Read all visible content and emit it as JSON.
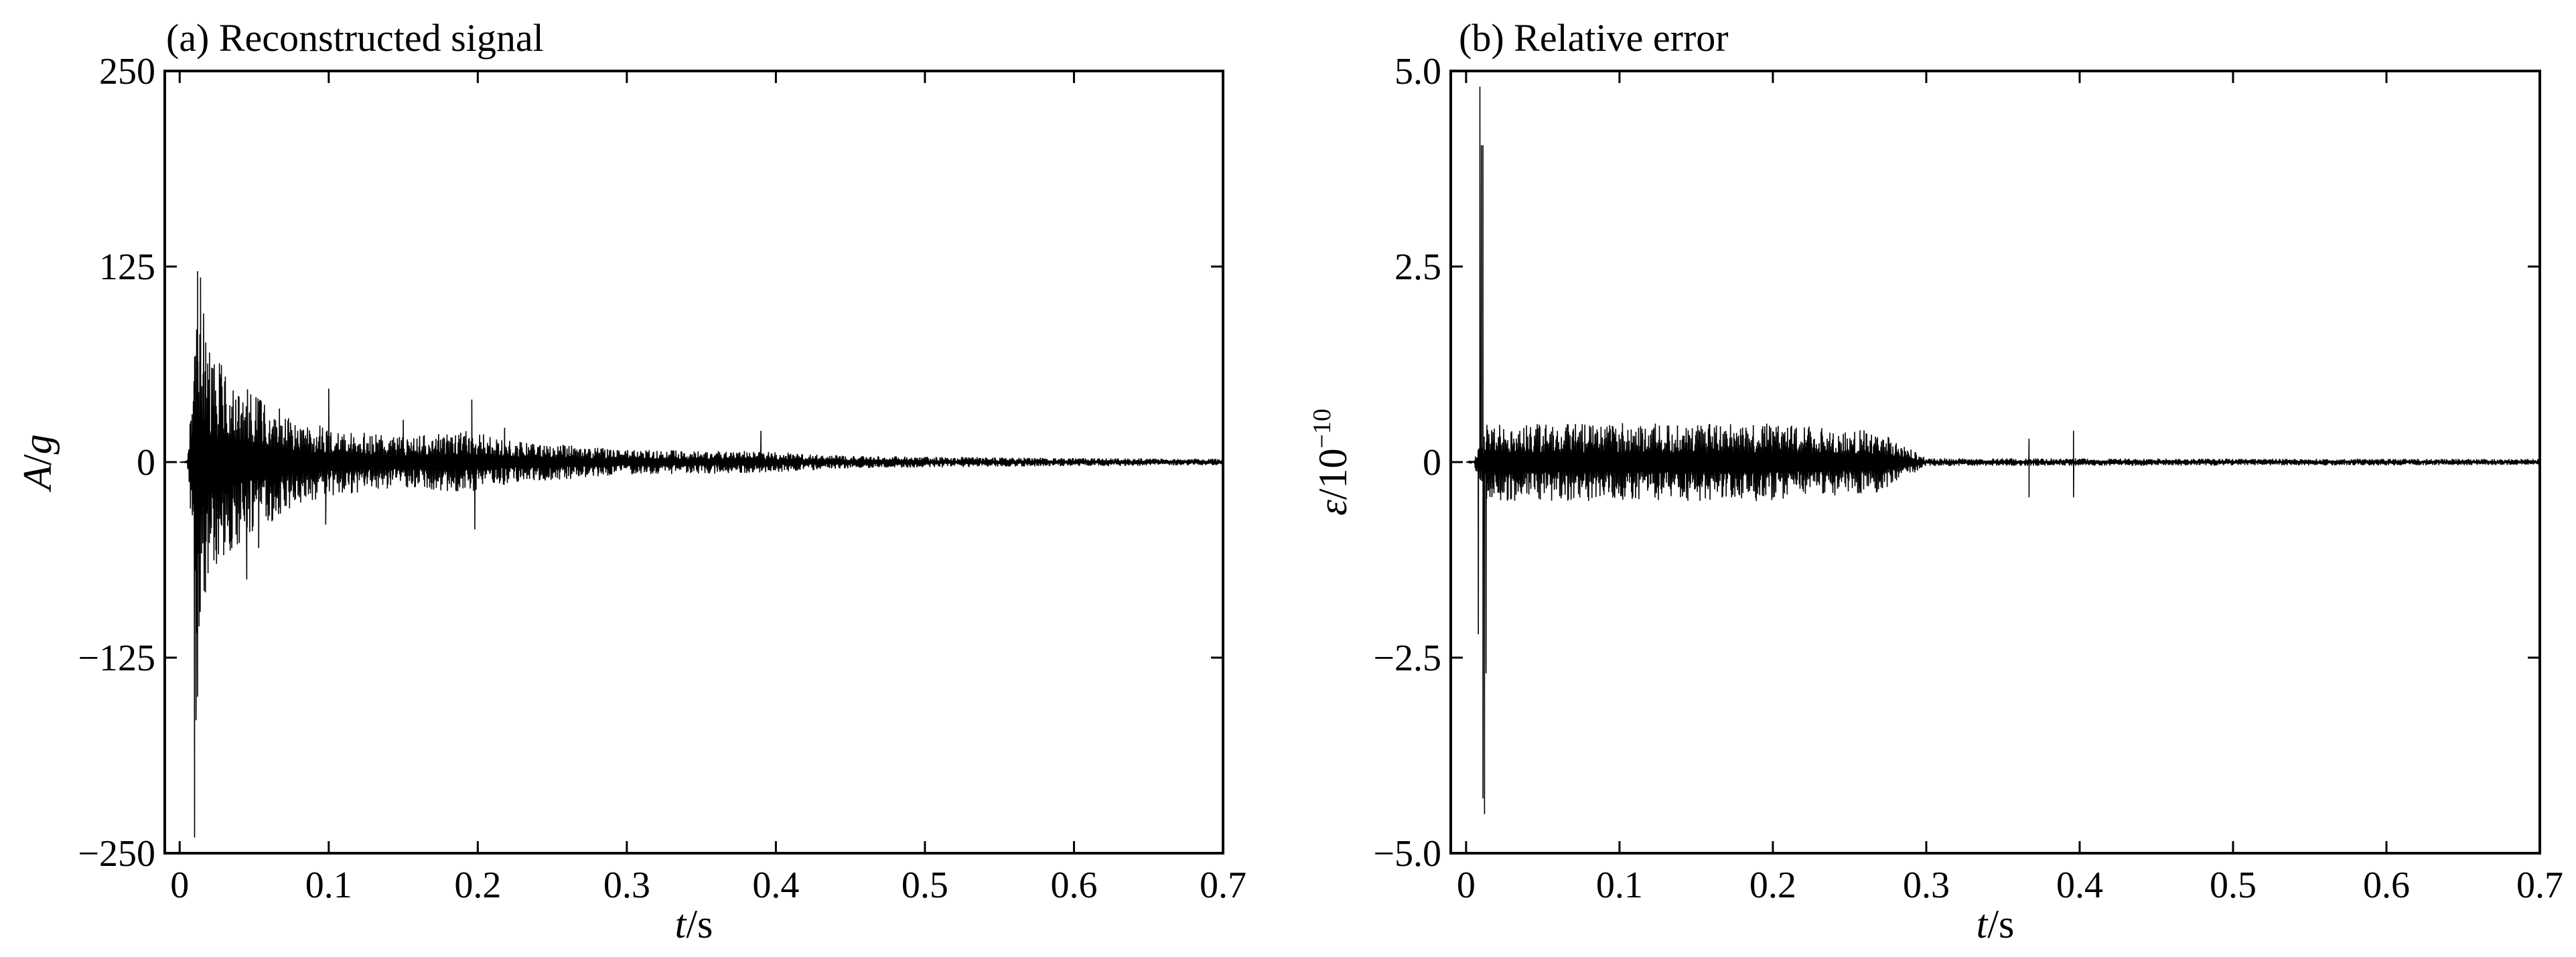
{
  "chart_data": [
    {
      "type": "line",
      "title": "(a) Reconstructed signal",
      "xlabel_var": "t",
      "xlabel_unit": "/s",
      "ylabel_var": "A",
      "ylabel_sep": "/",
      "ylabel_unit": "g",
      "xlim": [
        -0.01,
        0.7
      ],
      "ylim": [
        -250,
        250
      ],
      "xticks": [
        0,
        0.1,
        0.2,
        0.3,
        0.4,
        0.5,
        0.6,
        0.7
      ],
      "xtick_labels": [
        "0",
        "0.1",
        "0.2",
        "0.3",
        "0.4",
        "0.5",
        "0.6",
        "0.7"
      ],
      "yticks": [
        250,
        125,
        0,
        -125,
        -250
      ],
      "ytick_labels": [
        "250",
        "125",
        "0",
        "−125",
        "−250"
      ],
      "grid": false,
      "series": [
        {
          "color": "#000000",
          "envelope": {
            "t": [
              0,
              0.005,
              0.008,
              0.01,
              0.012,
              0.015,
              0.02,
              0.03,
              0.05,
              0.08,
              0.1,
              0.15,
              0.195,
              0.22,
              0.3,
              0.39,
              0.45,
              0.55,
              0.7
            ],
            "amp": [
              0,
              0.5,
              40,
              110,
              125,
              100,
              70,
              60,
              45,
              28,
              22,
              16,
              20,
              14,
              8,
              7,
              4,
              3,
              2
            ]
          },
          "peaks": [
            {
              "t": 0.01,
              "y": -240
            },
            {
              "t": 0.011,
              "y": -165
            },
            {
              "t": 0.012,
              "y": -150
            },
            {
              "t": 0.013,
              "y": -105
            },
            {
              "t": 0.012,
              "y": 122
            },
            {
              "t": 0.014,
              "y": 118
            },
            {
              "t": 0.016,
              "y": 95
            },
            {
              "t": 0.02,
              "y": 70
            },
            {
              "t": 0.028,
              "y": 62
            },
            {
              "t": 0.035,
              "y": -55
            },
            {
              "t": 0.045,
              "y": -75
            },
            {
              "t": 0.053,
              "y": -55
            },
            {
              "t": 0.1,
              "y": 47
            },
            {
              "t": 0.098,
              "y": -40
            },
            {
              "t": 0.15,
              "y": 27
            },
            {
              "t": 0.196,
              "y": 40
            },
            {
              "t": 0.198,
              "y": -43
            },
            {
              "t": 0.218,
              "y": 22
            },
            {
              "t": 0.39,
              "y": 20
            }
          ]
        }
      ]
    },
    {
      "type": "line",
      "title": "(b) Relative error",
      "xlabel_var": "t",
      "xlabel_unit": "/s",
      "ylabel_var": "ε",
      "ylabel_unit": "/10",
      "ylabel_exp": "−10",
      "xlim": [
        -0.01,
        0.7
      ],
      "ylim": [
        -5.0,
        5.0
      ],
      "xticks": [
        0,
        0.1,
        0.2,
        0.3,
        0.4,
        0.5,
        0.6,
        0.7
      ],
      "xtick_labels": [
        "0",
        "0.1",
        "0.2",
        "0.3",
        "0.4",
        "0.5",
        "0.6",
        "0.7"
      ],
      "yticks": [
        5.0,
        2.5,
        0,
        -2.5,
        -5.0
      ],
      "ytick_labels": [
        "5.0",
        "2.5",
        "0",
        "−2.5",
        "−5.0"
      ],
      "grid": false,
      "series": [
        {
          "color": "#000000",
          "envelope": {
            "t": [
              0,
              0.005,
              0.009,
              0.012,
              0.015,
              0.03,
              0.1,
              0.15,
              0.2,
              0.23,
              0.27,
              0.3,
              0.7
            ],
            "amp": [
              0,
              0.02,
              0.3,
              0.5,
              0.5,
              0.5,
              0.5,
              0.5,
              0.5,
              0.45,
              0.4,
              0.05,
              0.04
            ]
          },
          "peaks": [
            {
              "t": 0.009,
              "y": 4.8
            },
            {
              "t": 0.01,
              "y": 4.05
            },
            {
              "t": 0.011,
              "y": 4.05
            },
            {
              "t": 0.011,
              "y": -4.3
            },
            {
              "t": 0.012,
              "y": -4.5
            },
            {
              "t": 0.013,
              "y": -2.7
            },
            {
              "t": 0.008,
              "y": -2.2
            },
            {
              "t": 0.367,
              "y": 0.3
            },
            {
              "t": 0.367,
              "y": -0.45
            },
            {
              "t": 0.396,
              "y": 0.4
            },
            {
              "t": 0.396,
              "y": -0.45
            }
          ]
        }
      ]
    }
  ]
}
